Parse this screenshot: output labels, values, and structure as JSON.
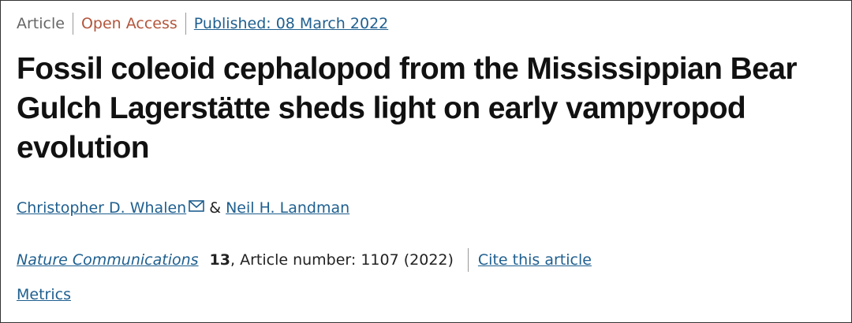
{
  "header": {
    "type": "Article",
    "access": "Open Access",
    "published": "Published: 08 March 2022"
  },
  "title": "Fossil coleoid cephalopod from the Mississippian Bear Gulch Lagerstätte sheds light on early vampyropod evolution",
  "authors": {
    "first": "Christopher D. Whalen",
    "separator": "&",
    "second": "Neil H. Landman"
  },
  "citation": {
    "journal": "Nature Communications",
    "volume": "13",
    "article": ", Article number: 1107 (2022)",
    "cite": "Cite this article"
  },
  "metrics": "Metrics"
}
